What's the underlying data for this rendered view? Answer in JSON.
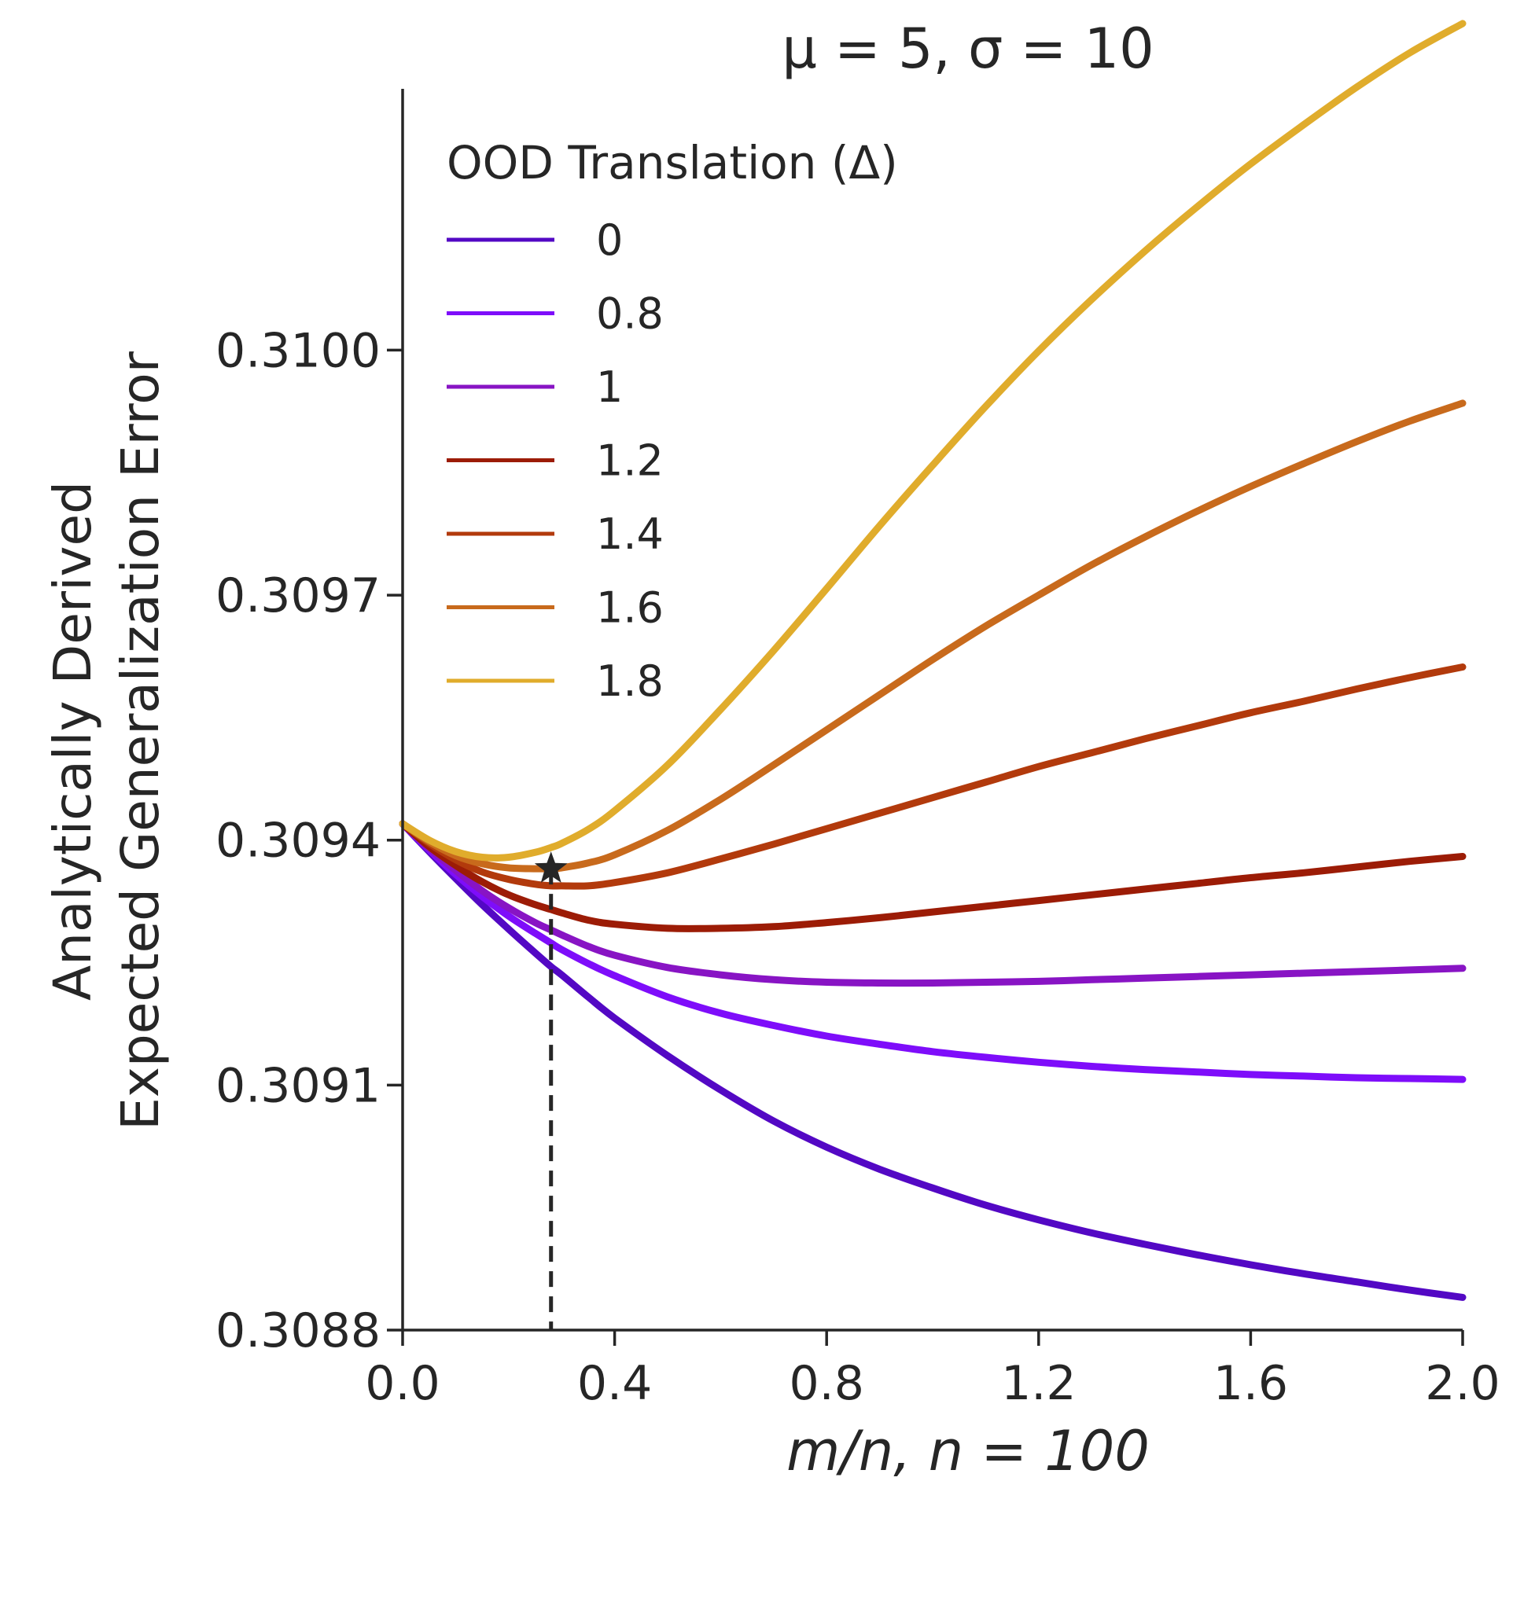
{
  "chart_data": {
    "type": "line",
    "title": "μ = 5, σ = 10",
    "xlabel": "m/n, n = 100",
    "ylabel_lines": [
      "Analytically Derived",
      "Expected Generalization Error"
    ],
    "xlim": [
      0.0,
      2.0
    ],
    "ylim": [
      0.3088,
      0.31032
    ],
    "xticks": [
      "0.0",
      "0.4",
      "0.8",
      "1.2",
      "1.6",
      "2.0"
    ],
    "yticks": [
      "0.3088",
      "0.3091",
      "0.3094",
      "0.3097",
      "0.3100"
    ],
    "grid": false,
    "legend": {
      "title": "OOD Translation (Δ)",
      "placement": "top-left"
    },
    "x": [
      0.0,
      0.05,
      0.1,
      0.15,
      0.2,
      0.25,
      0.28,
      0.3,
      0.35,
      0.4,
      0.5,
      0.6,
      0.7,
      0.8,
      0.9,
      1.0,
      1.1,
      1.2,
      1.3,
      1.4,
      1.5,
      1.6,
      1.7,
      1.8,
      1.9,
      2.0
    ],
    "series": [
      {
        "name": "0",
        "color": "#5308c4",
        "values": [
          0.30942,
          0.309386,
          0.309353,
          0.309321,
          0.309291,
          0.309262,
          0.309245,
          0.309235,
          0.309208,
          0.309182,
          0.309136,
          0.309094,
          0.309056,
          0.309024,
          0.308997,
          0.308974,
          0.308953,
          0.308935,
          0.308919,
          0.308905,
          0.308892,
          0.30888,
          0.308869,
          0.308859,
          0.308849,
          0.30884
        ]
      },
      {
        "name": "0.8",
        "color": "#7e0dfa",
        "values": [
          0.30942,
          0.309388,
          0.309358,
          0.309331,
          0.309307,
          0.309286,
          0.309274,
          0.309266,
          0.309249,
          0.309234,
          0.309208,
          0.309188,
          0.309173,
          0.30916,
          0.30915,
          0.309141,
          0.309134,
          0.309128,
          0.309123,
          0.309119,
          0.309116,
          0.309113,
          0.309111,
          0.309109,
          0.309108,
          0.309107
        ]
      },
      {
        "name": "1",
        "color": "#8814c4",
        "values": [
          0.30942,
          0.30939,
          0.309363,
          0.309338,
          0.309317,
          0.309299,
          0.30929,
          0.309284,
          0.30927,
          0.309259,
          0.309244,
          0.309235,
          0.309229,
          0.309226,
          0.309225,
          0.309225,
          0.309226,
          0.309227,
          0.309229,
          0.309231,
          0.309233,
          0.309235,
          0.309237,
          0.309239,
          0.309241,
          0.309243
        ]
      },
      {
        "name": "1.2",
        "color": "#9c1c06",
        "values": [
          0.30942,
          0.309392,
          0.309369,
          0.309349,
          0.309333,
          0.309321,
          0.309315,
          0.309311,
          0.309302,
          0.309297,
          0.309292,
          0.309292,
          0.309294,
          0.309299,
          0.309305,
          0.309312,
          0.309319,
          0.309326,
          0.309333,
          0.30934,
          0.309347,
          0.309354,
          0.30936,
          0.309367,
          0.309374,
          0.30938
        ]
      },
      {
        "name": "1.4",
        "color": "#b23a0c",
        "values": [
          0.30942,
          0.309396,
          0.309376,
          0.309361,
          0.309352,
          0.309346,
          0.309344,
          0.309344,
          0.309344,
          0.309348,
          0.30936,
          0.309377,
          0.309395,
          0.309414,
          0.309433,
          0.309452,
          0.309471,
          0.30949,
          0.309507,
          0.309524,
          0.30954,
          0.309556,
          0.30957,
          0.309585,
          0.309599,
          0.309612
        ]
      },
      {
        "name": "1.6",
        "color": "#c86a1c",
        "values": [
          0.30942,
          0.309398,
          0.309381,
          0.309371,
          0.309366,
          0.309365,
          0.309365,
          0.309366,
          0.309372,
          0.309382,
          0.309412,
          0.30945,
          0.309492,
          0.309535,
          0.309578,
          0.309621,
          0.309662,
          0.3097,
          0.309737,
          0.309771,
          0.309803,
          0.309833,
          0.309861,
          0.309888,
          0.309913,
          0.309935
        ]
      },
      {
        "name": "1.8",
        "color": "#e0ac2c",
        "values": [
          0.30942,
          0.3094,
          0.309386,
          0.309379,
          0.309379,
          0.309385,
          0.309391,
          0.309396,
          0.309413,
          0.309436,
          0.309492,
          0.30956,
          0.309632,
          0.309708,
          0.309785,
          0.309859,
          0.309931,
          0.309999,
          0.310062,
          0.310121,
          0.310176,
          0.310228,
          0.310276,
          0.310322,
          0.310364,
          0.3104
        ]
      }
    ],
    "marker": {
      "x": 0.28,
      "y": 0.309365,
      "symbol": "star",
      "dropline": "dashed"
    }
  }
}
